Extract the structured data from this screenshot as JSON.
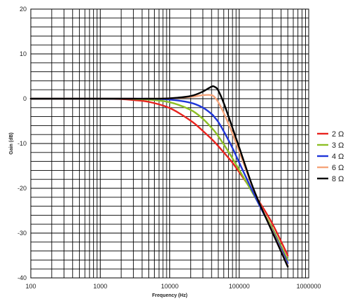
{
  "chart_data": {
    "type": "line",
    "title": "",
    "xlabel": "Frequency (Hz)",
    "ylabel": "Gain (dB)",
    "xscale": "log",
    "xlim": [
      100,
      1000000
    ],
    "ylim": [
      -40,
      20
    ],
    "grid": true,
    "legend_position": "right",
    "x_ticks": [
      "100",
      "1000",
      "10000",
      "100000",
      "1000000"
    ],
    "y_ticks": [
      "20",
      "10",
      "0",
      "-10",
      "-20",
      "-30",
      "-40"
    ],
    "x": [
      100,
      1000,
      2000,
      3000,
      5000,
      10000,
      20000,
      30000,
      40000,
      45000,
      50000,
      60000,
      80000,
      100000,
      150000,
      200000,
      300000,
      500000
    ],
    "series": [
      {
        "name": "2 Ω",
        "color": "#e8231e",
        "values": [
          0,
          0,
          -0.1,
          -0.3,
          -0.7,
          -2.1,
          -4.9,
          -7.2,
          -9.0,
          -9.8,
          -10.6,
          -12.0,
          -14.3,
          -16.4,
          -20.3,
          -23.3,
          -27.9,
          -35.0
        ]
      },
      {
        "name": "3 Ω",
        "color": "#8dbf26",
        "values": [
          0,
          0,
          0,
          -0.1,
          -0.2,
          -0.8,
          -2.5,
          -4.5,
          -6.5,
          -7.4,
          -8.4,
          -10.2,
          -13.3,
          -15.9,
          -20.6,
          -24.0,
          -28.9,
          -36.0
        ]
      },
      {
        "name": "4 Ω",
        "color": "#1f35d8",
        "values": [
          0,
          0,
          0,
          0,
          0,
          -0.2,
          -0.9,
          -2.0,
          -3.4,
          -4.3,
          -5.2,
          -7.3,
          -11.0,
          -14.3,
          -20.1,
          -24.1,
          -29.4,
          -36.7
        ]
      },
      {
        "name": "6 Ω",
        "color": "#f5a47a",
        "values": [
          0,
          0,
          0,
          0,
          0,
          0.1,
          0.4,
          0.8,
          0.8,
          0.2,
          -0.8,
          -3.2,
          -7.8,
          -11.8,
          -19.1,
          -23.6,
          -29.6,
          -37.3
        ]
      },
      {
        "name": "8 Ω",
        "color": "#000000",
        "values": [
          0,
          0,
          0,
          0,
          0,
          0.1,
          0.6,
          1.6,
          2.7,
          2.6,
          1.8,
          -1.0,
          -6.5,
          -10.9,
          -18.9,
          -23.7,
          -29.8,
          -37.5
        ]
      }
    ]
  }
}
